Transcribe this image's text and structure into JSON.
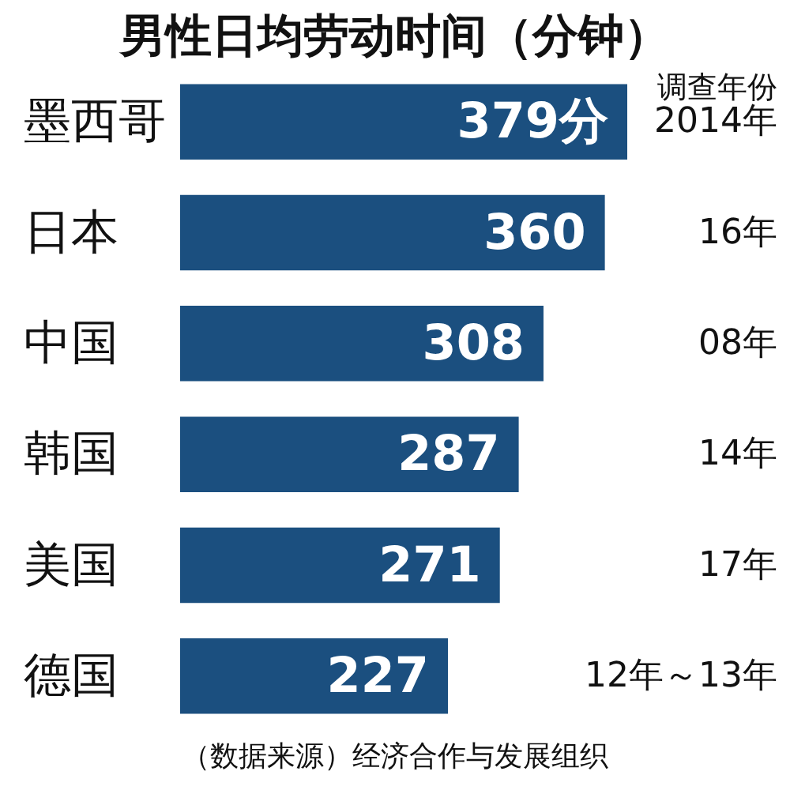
{
  "chart_data": {
    "type": "bar",
    "orientation": "horizontal",
    "title": "男性日均劳动时间（分钟）",
    "categories": [
      "墨西哥",
      "日本",
      "中国",
      "韩国",
      "美国",
      "德国"
    ],
    "values": [
      379,
      360,
      308,
      287,
      271,
      227
    ],
    "value_labels": [
      "379分",
      "360",
      "308",
      "287",
      "271",
      "227"
    ],
    "color": "#1b4f7f",
    "y2label": "调查年份",
    "y2_categories": [
      "2014年",
      "16年",
      "08年",
      "14年",
      "17年",
      "12年～13年"
    ],
    "annotations": [
      "（数据来源）经济合作与发展组织"
    ]
  }
}
